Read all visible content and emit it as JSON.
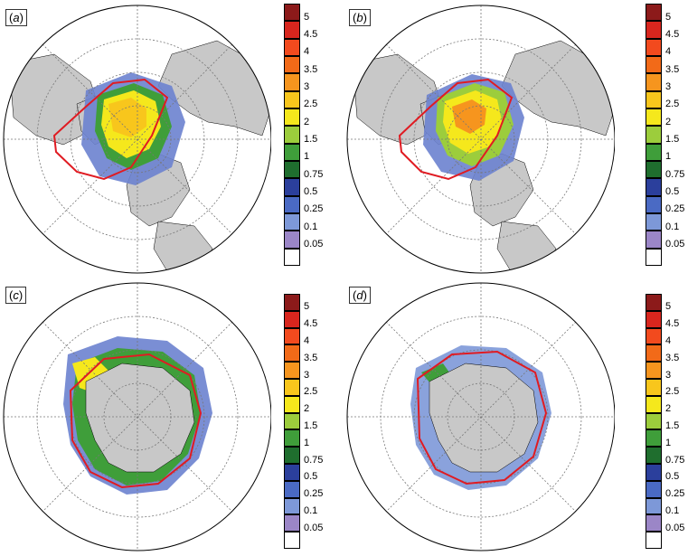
{
  "panels": [
    {
      "label_open": "(",
      "letter": "a",
      "label_close": ")",
      "hemisphere": "north"
    },
    {
      "label_open": "(",
      "letter": "b",
      "label_close": ")",
      "hemisphere": "north"
    },
    {
      "label_open": "(",
      "letter": "c",
      "label_close": ")",
      "hemisphere": "south"
    },
    {
      "label_open": "(",
      "letter": "d",
      "label_close": ")",
      "hemisphere": "south"
    }
  ],
  "legend": {
    "levels": [
      "5",
      "4.5",
      "4",
      "3.5",
      "3",
      "2.5",
      "2",
      "1.5",
      "1",
      "0.75",
      "0.5",
      "0.25",
      "0.1",
      "0.05"
    ],
    "colors": [
      "#8c1a1a",
      "#d8261e",
      "#f24a1e",
      "#f26a18",
      "#f6951e",
      "#f8c61c",
      "#f5e81c",
      "#9ccd3c",
      "#3f9e3a",
      "#1f6e2e",
      "#2b3f9c",
      "#4a6ac4",
      "#7d98d8",
      "#9b86c7",
      "#ffffff"
    ]
  },
  "colors": {
    "land": "#c8c8c8",
    "ocean": "#ffffff",
    "grid": "#777777",
    "observed_edge": "#e01b22"
  }
}
